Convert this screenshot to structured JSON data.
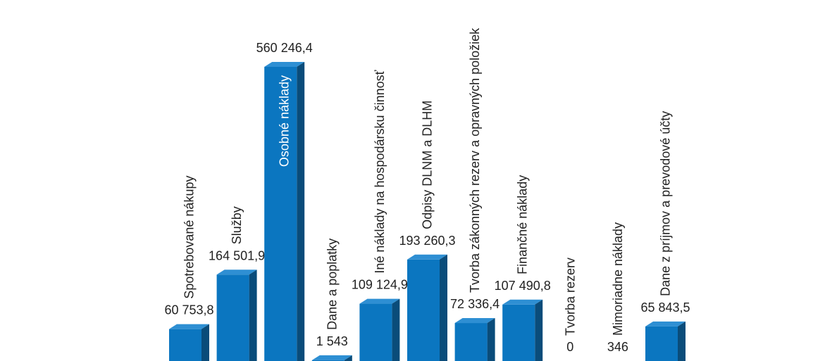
{
  "chart_data": {
    "type": "bar",
    "style": "3d",
    "colors": {
      "front": "#0B76C0",
      "top": "#2E8FD3",
      "side": "#0A4C7A"
    },
    "categories": [
      "Spotrebované nákupy",
      "Služby",
      "Osobné náklady",
      "Dane a poplatky",
      "Iné náklady na hospodársku činnosť",
      "Odpisy DLNM a DLHM",
      "Tvorba zákonných rezerv a opravných položiek",
      "Finančné náklady",
      "Tvorba rezerv",
      "Mimoriadne náklady",
      "Dane z príjmov a prevodové účty"
    ],
    "values": [
      60753.8,
      164501.9,
      560246.4,
      1543,
      109124.9,
      193260.3,
      72336.4,
      107490.8,
      0,
      346,
      65843.5
    ],
    "value_labels": [
      "60 753,8",
      "164 501,9",
      "560 246,4",
      "1 543",
      "109 124,9",
      "193 260,3",
      "72 336,4",
      "107 490,8",
      "0",
      "346",
      "65 843,5"
    ],
    "ylim": [
      0,
      560246.4
    ],
    "grid": false,
    "legend": "none",
    "title": "",
    "xlabel": "",
    "ylabel": ""
  }
}
